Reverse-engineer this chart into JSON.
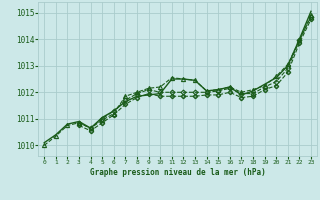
{
  "title": "Graphe pression niveau de la mer (hPa)",
  "bg_color": "#cce8e8",
  "grid_color": "#aacccc",
  "line_color": "#1a5c1a",
  "marker_color": "#1a5c1a",
  "xlim": [
    -0.5,
    23.5
  ],
  "ylim": [
    1009.6,
    1015.4
  ],
  "yticks": [
    1010,
    1011,
    1012,
    1013,
    1014,
    1015
  ],
  "xticks": [
    0,
    1,
    2,
    3,
    4,
    5,
    6,
    7,
    8,
    9,
    10,
    11,
    12,
    13,
    14,
    15,
    16,
    17,
    18,
    19,
    20,
    21,
    22,
    23
  ],
  "series": [
    {
      "x": [
        0,
        1,
        2,
        3,
        4,
        5,
        6,
        7,
        8,
        9,
        10,
        11,
        12,
        13,
        14,
        15,
        16,
        17,
        18,
        19,
        20,
        21,
        22,
        23
      ],
      "y": [
        1010.1,
        1010.4,
        1010.8,
        1010.9,
        1010.65,
        1011.05,
        1011.3,
        1011.65,
        1011.85,
        1011.9,
        1011.95,
        1012.5,
        1012.5,
        1012.45,
        1012.05,
        1012.1,
        1012.2,
        1011.9,
        1012.05,
        1012.3,
        1012.55,
        1013.0,
        1014.0,
        1015.05
      ],
      "style": "solid",
      "marker": null,
      "lw": 1.0
    },
    {
      "x": [
        0,
        1,
        2,
        3,
        4,
        5,
        6,
        7,
        8,
        9,
        10,
        11,
        12,
        13,
        14,
        15,
        16,
        17,
        18,
        19,
        20,
        21,
        22,
        23
      ],
      "y": [
        1010.0,
        1010.35,
        1010.75,
        1010.85,
        1010.65,
        1010.95,
        1011.2,
        1011.85,
        1012.0,
        1012.15,
        1012.2,
        1012.55,
        1012.5,
        1012.45,
        1012.05,
        1012.1,
        1012.2,
        1012.0,
        1012.1,
        1012.25,
        1012.6,
        1013.05,
        1013.95,
        1014.9
      ],
      "style": "dashed",
      "marker": "^",
      "lw": 0.8
    },
    {
      "x": [
        3,
        4,
        5,
        6,
        7,
        8,
        9,
        10,
        11,
        12,
        13,
        14,
        15,
        16,
        17,
        18,
        19,
        20,
        21,
        22,
        23
      ],
      "y": [
        1010.85,
        1010.65,
        1011.0,
        1011.3,
        1011.7,
        1011.95,
        1012.1,
        1012.0,
        1012.0,
        1012.0,
        1012.0,
        1012.0,
        1012.05,
        1012.15,
        1011.95,
        1011.95,
        1012.2,
        1012.4,
        1012.9,
        1013.95,
        1014.85
      ],
      "style": "dashed",
      "marker": "D",
      "lw": 0.8
    },
    {
      "x": [
        3,
        4,
        5,
        6,
        7,
        8,
        9,
        10,
        11,
        12,
        13,
        14,
        15,
        16,
        17,
        18,
        19,
        20,
        21,
        22,
        23
      ],
      "y": [
        1010.75,
        1010.55,
        1010.85,
        1011.15,
        1011.55,
        1011.8,
        1011.95,
        1011.85,
        1011.85,
        1011.85,
        1011.85,
        1011.9,
        1011.9,
        1012.0,
        1011.8,
        1011.85,
        1012.1,
        1012.25,
        1012.75,
        1013.85,
        1014.75
      ],
      "style": "dashed",
      "marker": "P",
      "lw": 0.8
    }
  ]
}
